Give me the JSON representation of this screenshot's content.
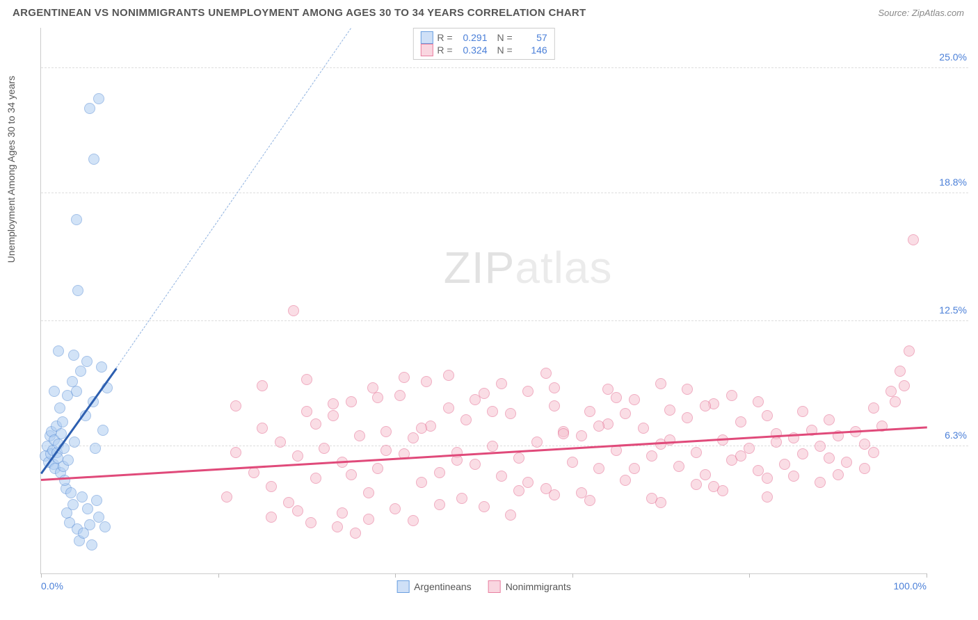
{
  "title": "ARGENTINEAN VS NONIMMIGRANTS UNEMPLOYMENT AMONG AGES 30 TO 34 YEARS CORRELATION CHART",
  "source": "Source: ZipAtlas.com",
  "watermark_bold": "ZIP",
  "watermark_light": "atlas",
  "chart": {
    "type": "scatter",
    "ylabel": "Unemployment Among Ages 30 to 34 years",
    "xlim": [
      0,
      100
    ],
    "ylim": [
      0,
      27
    ],
    "xtick_labels": {
      "0": "0.0%",
      "100": "100.0%"
    },
    "xtick_positions": [
      0,
      20,
      40,
      60,
      80,
      100
    ],
    "ytick_labels": {
      "6.3": "6.3%",
      "12.5": "12.5%",
      "18.8": "18.8%",
      "25": "25.0%"
    },
    "grid_color": "#dddddd",
    "axis_color": "#cccccc",
    "background_color": "#ffffff",
    "tick_label_color": "#4a7fd8",
    "marker_radius": 8,
    "marker_opacity": 0.55,
    "series": [
      {
        "name": "Argentineans",
        "color_fill": "#aecdf2",
        "color_stroke": "#5b8fd6",
        "legend_swatch_fill": "#cfe0f7",
        "legend_swatch_stroke": "#6a9fe0",
        "R": "0.291",
        "N": "57",
        "trend": {
          "x1": 0,
          "y1": 5.0,
          "x2": 8.5,
          "y2": 10.2,
          "color": "#2d5fb0",
          "width": 2.5
        },
        "trend_dash": {
          "x1": 8.5,
          "y1": 10.2,
          "x2": 35,
          "y2": 27,
          "color": "#8fb2e0"
        },
        "points": [
          [
            0.5,
            5.8
          ],
          [
            0.7,
            6.3
          ],
          [
            0.9,
            5.5
          ],
          [
            1.0,
            6.8
          ],
          [
            1.1,
            5.9
          ],
          [
            1.2,
            7.0
          ],
          [
            1.3,
            6.1
          ],
          [
            1.4,
            5.4
          ],
          [
            1.5,
            6.6
          ],
          [
            1.6,
            5.2
          ],
          [
            1.7,
            7.3
          ],
          [
            1.8,
            6.0
          ],
          [
            1.9,
            5.7
          ],
          [
            2.0,
            6.4
          ],
          [
            2.1,
            8.2
          ],
          [
            2.2,
            5.0
          ],
          [
            2.3,
            6.9
          ],
          [
            2.4,
            7.5
          ],
          [
            2.5,
            5.3
          ],
          [
            2.6,
            6.2
          ],
          [
            2.8,
            4.2
          ],
          [
            2.9,
            3.0
          ],
          [
            3.0,
            8.8
          ],
          [
            3.1,
            5.6
          ],
          [
            3.2,
            2.5
          ],
          [
            3.5,
            9.5
          ],
          [
            3.6,
            3.4
          ],
          [
            3.8,
            6.5
          ],
          [
            4.0,
            9.0
          ],
          [
            4.1,
            2.2
          ],
          [
            4.3,
            1.6
          ],
          [
            4.5,
            10.0
          ],
          [
            4.6,
            3.8
          ],
          [
            4.8,
            2.0
          ],
          [
            5.0,
            7.8
          ],
          [
            5.2,
            10.5
          ],
          [
            5.3,
            3.2
          ],
          [
            5.5,
            2.4
          ],
          [
            5.7,
            1.4
          ],
          [
            5.9,
            8.5
          ],
          [
            6.1,
            6.2
          ],
          [
            6.3,
            3.6
          ],
          [
            6.5,
            2.8
          ],
          [
            6.8,
            10.2
          ],
          [
            7.0,
            7.1
          ],
          [
            7.2,
            2.3
          ],
          [
            7.5,
            9.2
          ],
          [
            2.7,
            4.6
          ],
          [
            3.4,
            4.0
          ],
          [
            4.0,
            17.5
          ],
          [
            5.5,
            23.0
          ],
          [
            6.5,
            23.5
          ],
          [
            4.2,
            14.0
          ],
          [
            6.0,
            20.5
          ],
          [
            3.7,
            10.8
          ],
          [
            2.0,
            11.0
          ],
          [
            1.5,
            9.0
          ]
        ]
      },
      {
        "name": "Nonimmigrants",
        "color_fill": "#f6c3d1",
        "color_stroke": "#e46a8f",
        "legend_swatch_fill": "#f9d6e0",
        "legend_swatch_stroke": "#e87fa0",
        "R": "0.324",
        "N": "146",
        "trend": {
          "x1": 0,
          "y1": 4.7,
          "x2": 100,
          "y2": 7.3,
          "color": "#e04a7a",
          "width": 2.5
        },
        "points": [
          [
            21,
            3.8
          ],
          [
            22,
            6.0
          ],
          [
            24,
            5.0
          ],
          [
            25,
            7.2
          ],
          [
            26,
            4.3
          ],
          [
            27,
            6.5
          ],
          [
            28,
            3.5
          ],
          [
            28.5,
            13.0
          ],
          [
            29,
            5.8
          ],
          [
            30,
            8.0
          ],
          [
            30.5,
            2.5
          ],
          [
            31,
            4.7
          ],
          [
            32,
            6.2
          ],
          [
            33,
            7.8
          ],
          [
            33.5,
            2.3
          ],
          [
            34,
            5.5
          ],
          [
            35,
            8.5
          ],
          [
            35.5,
            2.0
          ],
          [
            36,
            6.8
          ],
          [
            37,
            4.0
          ],
          [
            37.5,
            9.2
          ],
          [
            38,
            5.2
          ],
          [
            39,
            7.0
          ],
          [
            40,
            3.2
          ],
          [
            40.5,
            8.8
          ],
          [
            41,
            5.9
          ],
          [
            42,
            6.7
          ],
          [
            43,
            4.5
          ],
          [
            43.5,
            9.5
          ],
          [
            44,
            7.3
          ],
          [
            45,
            5.0
          ],
          [
            46,
            8.2
          ],
          [
            47,
            6.0
          ],
          [
            47.5,
            3.7
          ],
          [
            48,
            7.6
          ],
          [
            49,
            5.4
          ],
          [
            50,
            8.9
          ],
          [
            51,
            6.3
          ],
          [
            52,
            4.8
          ],
          [
            53,
            7.9
          ],
          [
            54,
            5.7
          ],
          [
            55,
            9.0
          ],
          [
            56,
            6.5
          ],
          [
            57,
            4.2
          ],
          [
            58,
            8.3
          ],
          [
            59,
            7.0
          ],
          [
            60,
            5.5
          ],
          [
            61,
            6.8
          ],
          [
            62,
            8.0
          ],
          [
            63,
            5.2
          ],
          [
            64,
            7.4
          ],
          [
            65,
            6.1
          ],
          [
            66,
            4.6
          ],
          [
            67,
            8.6
          ],
          [
            68,
            7.2
          ],
          [
            69,
            5.8
          ],
          [
            70,
            6.4
          ],
          [
            71,
            8.1
          ],
          [
            72,
            5.3
          ],
          [
            73,
            7.7
          ],
          [
            74,
            6.0
          ],
          [
            75,
            4.9
          ],
          [
            76,
            8.4
          ],
          [
            77,
            6.6
          ],
          [
            78,
            5.6
          ],
          [
            79,
            7.5
          ],
          [
            80,
            6.2
          ],
          [
            81,
            5.1
          ],
          [
            82,
            7.8
          ],
          [
            83,
            6.9
          ],
          [
            84,
            5.4
          ],
          [
            85,
            6.7
          ],
          [
            86,
            5.9
          ],
          [
            87,
            7.1
          ],
          [
            88,
            6.3
          ],
          [
            89,
            5.7
          ],
          [
            90,
            6.8
          ],
          [
            91,
            5.5
          ],
          [
            92,
            7.0
          ],
          [
            93,
            6.4
          ],
          [
            94,
            8.2
          ],
          [
            95,
            7.3
          ],
          [
            96,
            9.0
          ],
          [
            96.5,
            8.5
          ],
          [
            97,
            10.0
          ],
          [
            97.5,
            9.3
          ],
          [
            98,
            11.0
          ],
          [
            98.5,
            16.5
          ],
          [
            52,
            9.4
          ],
          [
            58,
            3.9
          ],
          [
            64,
            9.1
          ],
          [
            70,
            3.5
          ],
          [
            76,
            4.3
          ],
          [
            82,
            4.7
          ],
          [
            88,
            4.5
          ],
          [
            94,
            6.0
          ],
          [
            22,
            8.3
          ],
          [
            26,
            2.8
          ],
          [
            30,
            9.6
          ],
          [
            34,
            3.0
          ],
          [
            38,
            8.7
          ],
          [
            42,
            2.6
          ],
          [
            46,
            9.8
          ],
          [
            50,
            3.3
          ],
          [
            54,
            4.1
          ],
          [
            58,
            9.2
          ],
          [
            62,
            3.6
          ],
          [
            66,
            7.9
          ],
          [
            70,
            9.4
          ],
          [
            74,
            4.4
          ],
          [
            78,
            8.8
          ],
          [
            82,
            3.8
          ],
          [
            86,
            8.0
          ],
          [
            90,
            4.9
          ],
          [
            25,
            9.3
          ],
          [
            29,
            3.1
          ],
          [
            33,
            8.4
          ],
          [
            37,
            2.7
          ],
          [
            41,
            9.7
          ],
          [
            45,
            3.4
          ],
          [
            49,
            8.6
          ],
          [
            53,
            2.9
          ],
          [
            57,
            9.9
          ],
          [
            61,
            4.0
          ],
          [
            65,
            8.7
          ],
          [
            69,
            3.7
          ],
          [
            73,
            9.1
          ],
          [
            77,
            4.1
          ],
          [
            81,
            8.5
          ],
          [
            85,
            4.8
          ],
          [
            89,
            7.6
          ],
          [
            93,
            5.2
          ],
          [
            31,
            7.4
          ],
          [
            35,
            4.9
          ],
          [
            39,
            6.1
          ],
          [
            43,
            7.2
          ],
          [
            47,
            5.6
          ],
          [
            51,
            8.0
          ],
          [
            55,
            4.5
          ],
          [
            59,
            6.9
          ],
          [
            63,
            7.3
          ],
          [
            67,
            5.2
          ],
          [
            71,
            6.6
          ],
          [
            75,
            8.3
          ],
          [
            79,
            5.8
          ],
          [
            83,
            6.5
          ]
        ]
      }
    ]
  },
  "legend_top": {
    "R_label": "R =",
    "N_label": "N ="
  },
  "legend_bottom": [
    {
      "key": 0
    },
    {
      "key": 1
    }
  ]
}
